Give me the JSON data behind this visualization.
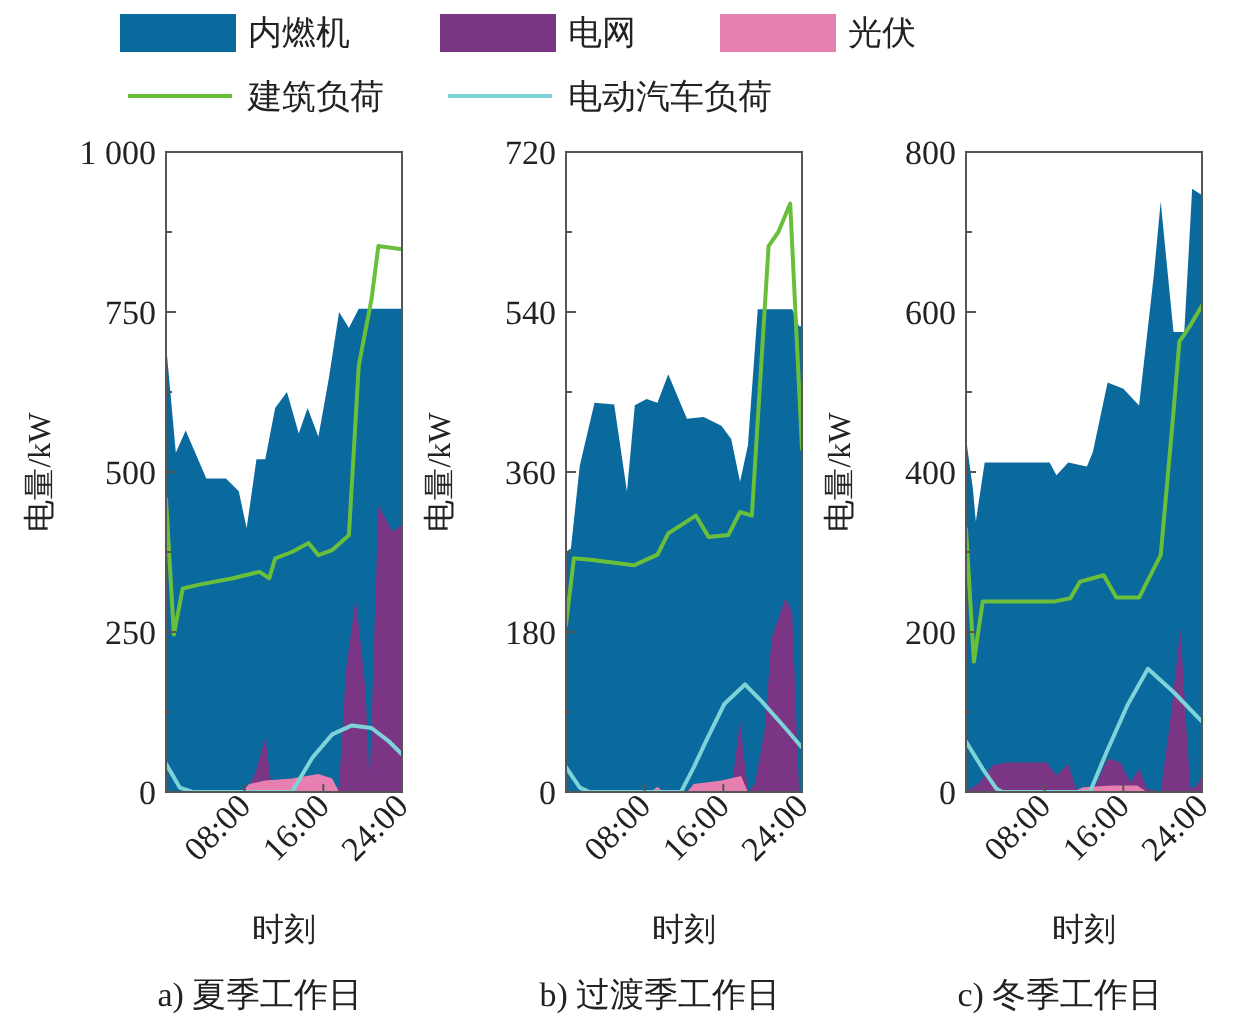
{
  "chart_data": [
    {
      "type": "area",
      "xlabel": "时刻",
      "ylabel": "电量/kW",
      "annotations": [
        "a) 夏季工作日"
      ],
      "legend": "top",
      "grid": false,
      "xlim": [
        0,
        24
      ],
      "xticks": [
        {
          "value": 8,
          "label": "08:00"
        },
        {
          "value": 16,
          "label": "16:00"
        },
        {
          "value": 24,
          "label": "24:00"
        }
      ],
      "ylim": [
        0,
        1000
      ],
      "yticks": [
        0,
        {
          "value": 125,
          "label": null
        },
        250,
        {
          "value": 375,
          "label": null
        },
        500,
        {
          "value": 625,
          "label": null
        },
        750,
        {
          "value": 875,
          "label": null
        },
        {
          "value": 1000,
          "label": "1 000"
        }
      ],
      "series": [
        {
          "name": "内燃机",
          "type": "area",
          "color": "#0a699d",
          "x": [
            0,
            1.0,
            2.0,
            4.1,
            6.1,
            7.4,
            8.2,
            9.2,
            10.1,
            11.1,
            12.3,
            13.5,
            14.4,
            15.5,
            16.6,
            17.6,
            18.6,
            19.6,
            24
          ],
          "values": [
            700,
            530,
            565,
            490,
            490,
            470,
            412,
            520,
            520,
            600,
            625,
            560,
            600,
            555,
            650,
            750,
            725,
            755,
            755
          ]
        },
        {
          "name": "电网",
          "type": "area",
          "color": "#7b3585",
          "x": [
            0,
            8.1,
            9.1,
            10.1,
            10.8,
            17.4,
            17.6,
            18.3,
            19.3,
            20.3,
            20.7,
            21.6,
            23,
            24
          ],
          "values": [
            0,
            0,
            30,
            85,
            0,
            0,
            10,
            190,
            303,
            158,
            12,
            448,
            407,
            417
          ]
        },
        {
          "name": "光伏",
          "type": "area",
          "color": "#e77fb0",
          "x": [
            0,
            7.8,
            8.4,
            10.1,
            12.8,
            15.5,
            16.9,
            17.6,
            24
          ],
          "values": [
            0,
            0,
            12,
            18,
            21,
            28,
            21,
            0,
            0
          ]
        },
        {
          "name": "建筑负荷",
          "type": "line",
          "color": "#6abf3a",
          "x": [
            0,
            0.8,
            1.7,
            3.4,
            6.8,
            9.5,
            10.5,
            11.1,
            12.8,
            14.5,
            15.5,
            16.9,
            18.6,
            19.6,
            20.9,
            21.6,
            24
          ],
          "values": [
            458,
            246,
            318,
            324,
            334,
            344,
            334,
            365,
            375,
            389,
            370,
            378,
            401,
            666,
            770,
            853,
            848
          ]
        },
        {
          "name": "电动汽车负荷",
          "type": "line",
          "color": "#7ed3d8",
          "x": [
            0,
            1.4,
            2.7,
            12.8,
            14.9,
            16.9,
            18.9,
            20.9,
            22.6,
            24
          ],
          "values": [
            44,
            7,
            0,
            0,
            54,
            90,
            104,
            100,
            80,
            59
          ]
        }
      ]
    },
    {
      "type": "area",
      "xlabel": "时刻",
      "ylabel": "电量/kW",
      "annotations": [
        "b) 过渡季工作日"
      ],
      "grid": false,
      "xlim": [
        0,
        24
      ],
      "xticks": [
        {
          "value": 8,
          "label": "08:00"
        },
        {
          "value": 16,
          "label": "16:00"
        },
        {
          "value": 24,
          "label": "24:00"
        }
      ],
      "ylim": [
        0,
        720
      ],
      "yticks": [
        0,
        {
          "value": 90,
          "label": null
        },
        180,
        {
          "value": 270,
          "label": null
        },
        360,
        {
          "value": 450,
          "label": null
        },
        540,
        {
          "value": 630,
          "label": null
        },
        720
      ],
      "series": [
        {
          "type": "area",
          "color": "#0a699d",
          "x": [
            0,
            0.5,
            1.4,
            2.9,
            4.9,
            6.2,
            7.0,
            8.2,
            9.3,
            10.4,
            12.3,
            14.0,
            15.8,
            16.8,
            17.7,
            18.5,
            19.5,
            23.0,
            23.7,
            24
          ],
          "values": [
            270,
            274,
            367,
            438,
            436,
            338,
            435,
            442,
            438,
            470,
            420,
            422,
            412,
            397,
            349,
            390,
            543,
            543,
            524,
            524
          ]
        },
        {
          "type": "area",
          "color": "#7b3585",
          "x": [
            0,
            16.8,
            17.7,
            18.5,
            19.2,
            20.2,
            20.9,
            22.3,
            23.0,
            23.7,
            24
          ],
          "values": [
            0,
            0,
            80,
            0,
            9,
            69,
            173,
            218,
            203,
            0,
            0
          ]
        },
        {
          "type": "area",
          "color": "#e77fb0",
          "x": [
            0,
            8.6,
            9.3,
            9.9,
            12.3,
            13.0,
            15.8,
            17.8,
            18.5,
            24
          ],
          "values": [
            0,
            0,
            6,
            0,
            0,
            9,
            13,
            18,
            0,
            0
          ]
        },
        {
          "type": "line",
          "color": "#6abf3a",
          "x": [
            0,
            0.8,
            2.7,
            6.9,
            9.3,
            10.4,
            13.2,
            14.5,
            16.5,
            17.7,
            18.9,
            20.6,
            21.6,
            22.8,
            24
          ],
          "values": [
            188,
            263,
            261,
            255,
            267,
            291,
            311,
            287,
            289,
            315,
            311,
            614,
            630,
            662,
            386
          ]
        },
        {
          "type": "line",
          "color": "#7ed3d8",
          "x": [
            0,
            1.4,
            2.4,
            11.7,
            13.0,
            14.4,
            16.1,
            18.2,
            19.9,
            22.3,
            24
          ],
          "values": [
            28,
            5,
            0,
            0,
            28,
            61,
            99,
            121,
            102,
            72,
            50
          ]
        }
      ]
    },
    {
      "type": "area",
      "xlabel": "时刻",
      "ylabel": "电量/kW",
      "annotations": [
        "c) 冬季工作日"
      ],
      "grid": false,
      "xlim": [
        0,
        24
      ],
      "xticks": [
        {
          "value": 8,
          "label": "08:00"
        },
        {
          "value": 16,
          "label": "16:00"
        },
        {
          "value": 24,
          "label": "24:00"
        }
      ],
      "ylim": [
        0,
        800
      ],
      "yticks": [
        0,
        {
          "value": 100,
          "label": null
        },
        200,
        {
          "value": 300,
          "label": null
        },
        400,
        {
          "value": 500,
          "label": null
        },
        600,
        {
          "value": 700,
          "label": null
        },
        800
      ],
      "series": [
        {
          "type": "area",
          "color": "#0a699d",
          "x": [
            0,
            0.7,
            1.0,
            1.9,
            8.5,
            9.2,
            10.4,
            12.3,
            12.9,
            14.4,
            16.0,
            17.6,
            19.1,
            19.8,
            21.1,
            22.2,
            23.0,
            24
          ],
          "values": [
            442,
            379,
            338,
            412,
            412,
            396,
            412,
            407,
            425,
            512,
            504,
            483,
            646,
            738,
            575,
            575,
            754,
            746
          ]
        },
        {
          "type": "area",
          "color": "#7b3585",
          "x": [
            0,
            1.4,
            2.7,
            4.1,
            8.2,
            9.2,
            10.4,
            11.2,
            12.9,
            14.4,
            15.7,
            16.7,
            17.6,
            18.4,
            19.8,
            20.8,
            21.8,
            22.8,
            23.5,
            24
          ],
          "values": [
            0,
            12,
            33,
            37,
            37,
            21,
            35,
            4,
            0,
            42,
            37,
            12,
            29,
            4,
            0,
            92,
            204,
            4,
            8,
            21
          ]
        },
        {
          "type": "area",
          "color": "#e77fb0",
          "x": [
            0,
            10.9,
            11.9,
            15.0,
            17.4,
            18.4,
            24
          ],
          "values": [
            0,
            0,
            6,
            8,
            8,
            0,
            0
          ]
        },
        {
          "type": "line",
          "color": "#6abf3a",
          "x": [
            0,
            0.8,
            1.7,
            8.9,
            10.6,
            11.6,
            14.0,
            15.3,
            17.6,
            19.8,
            21.1,
            21.7,
            22.8,
            24
          ],
          "values": [
            329,
            163,
            238,
            238,
            242,
            263,
            271,
            243,
            243,
            296,
            475,
            563,
            583,
            608
          ]
        },
        {
          "type": "line",
          "color": "#7ed3d8",
          "x": [
            0,
            1.7,
            3.1,
            3.7,
            12.6,
            14.3,
            16.4,
            18.5,
            21.1,
            24
          ],
          "values": [
            63,
            29,
            4,
            0,
            0,
            50,
            108,
            154,
            125,
            88
          ]
        }
      ]
    }
  ]
}
